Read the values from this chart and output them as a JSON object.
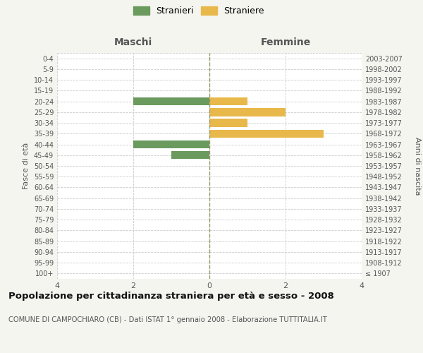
{
  "age_groups": [
    "100+",
    "95-99",
    "90-94",
    "85-89",
    "80-84",
    "75-79",
    "70-74",
    "65-69",
    "60-64",
    "55-59",
    "50-54",
    "45-49",
    "40-44",
    "35-39",
    "30-34",
    "25-29",
    "20-24",
    "15-19",
    "10-14",
    "5-9",
    "0-4"
  ],
  "birth_years": [
    "≤ 1907",
    "1908-1912",
    "1913-1917",
    "1918-1922",
    "1923-1927",
    "1928-1932",
    "1933-1937",
    "1938-1942",
    "1943-1947",
    "1948-1952",
    "1953-1957",
    "1958-1962",
    "1963-1967",
    "1968-1972",
    "1973-1977",
    "1978-1982",
    "1983-1987",
    "1988-1992",
    "1993-1997",
    "1998-2002",
    "2003-2007"
  ],
  "stranieri": [
    0,
    0,
    0,
    0,
    0,
    0,
    0,
    0,
    0,
    0,
    0,
    1,
    2,
    0,
    0,
    0,
    2,
    0,
    0,
    0,
    0
  ],
  "straniere": [
    0,
    0,
    0,
    0,
    0,
    0,
    0,
    0,
    0,
    0,
    0,
    0,
    0,
    3,
    1,
    2,
    1,
    0,
    0,
    0,
    0
  ],
  "color_stranieri": "#6b9a5e",
  "color_straniere": "#e8b84b",
  "title": "Popolazione per cittadinanza straniera per età e sesso - 2008",
  "subtitle": "COMUNE DI CAMPOCHIARO (CB) - Dati ISTAT 1° gennaio 2008 - Elaborazione TUTTITALIA.IT",
  "ylabel_left": "Fasce di età",
  "ylabel_right": "Anni di nascita",
  "xlabel_left": "Maschi",
  "xlabel_right": "Femmine",
  "xlim": 4,
  "background_color": "#f5f5f0",
  "bar_background": "#ffffff",
  "grid_color": "#cccccc",
  "center_line_color": "#999966"
}
